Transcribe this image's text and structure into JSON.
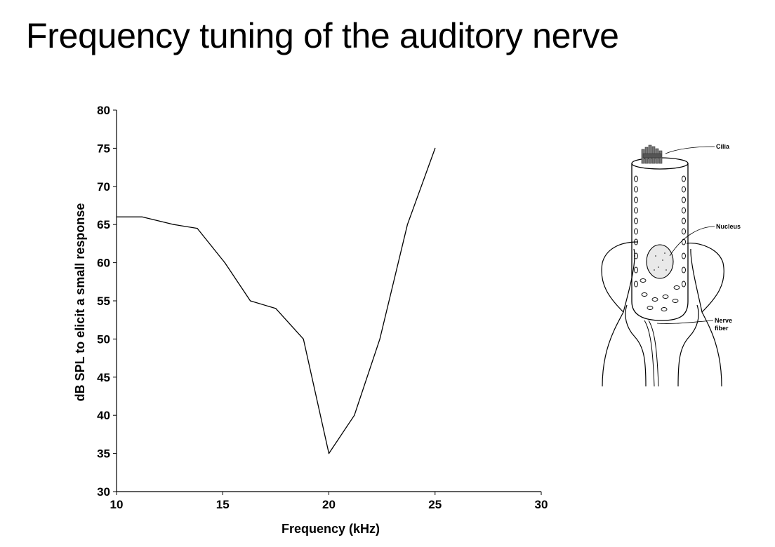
{
  "slide": {
    "title": "Frequency tuning of the auditory nerve"
  },
  "chart_data": {
    "type": "line",
    "xlabel": "Frequency (kHz)",
    "ylabel": "dB SPL to elicit a small response",
    "xlim": [
      10,
      30
    ],
    "ylim": [
      30,
      80
    ],
    "x_ticks": [
      10,
      15,
      20,
      25,
      30
    ],
    "y_ticks": [
      30,
      35,
      40,
      45,
      50,
      55,
      60,
      65,
      70,
      75,
      80
    ],
    "grid": false,
    "series": [
      {
        "x": [
          10,
          11.2,
          12.7,
          13.8,
          15.1,
          16.3,
          17.5,
          18.8,
          20.0,
          21.2,
          22.4,
          23.7,
          25.0
        ],
        "y": [
          66,
          66,
          65,
          64.5,
          60,
          55,
          54,
          50,
          35,
          40,
          50,
          65,
          75
        ]
      }
    ],
    "line_color": "#000000"
  },
  "figure": {
    "labels": {
      "cilia": "Cilia",
      "nucleus": "Nucleus",
      "nerve_line1": "Nerve",
      "nerve_line2": "fiber"
    }
  }
}
